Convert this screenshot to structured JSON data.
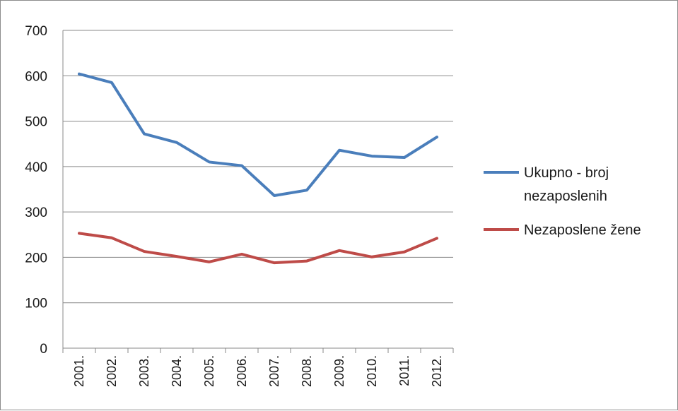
{
  "chart_data": {
    "type": "line",
    "title": "",
    "xlabel": "",
    "ylabel": "",
    "categories": [
      "2001.",
      "2002.",
      "2003.",
      "2004.",
      "2005.",
      "2006.",
      "2007.",
      "2008.",
      "2009.",
      "2010.",
      "2011.",
      "2012."
    ],
    "ylim": [
      0,
      700
    ],
    "yticks": [
      "0",
      "100",
      "200",
      "300",
      "400",
      "500",
      "600",
      "700"
    ],
    "grid": true,
    "legend_position": "right",
    "series": [
      {
        "name_lines": [
          "Ukupno - broj",
          "nezaposlenih"
        ],
        "color": "#4a7ebb",
        "values": [
          604,
          585,
          472,
          453,
          410,
          402,
          336,
          348,
          436,
          423,
          420,
          465
        ]
      },
      {
        "name_lines": [
          "Nezaposlene žene"
        ],
        "color": "#be4b48",
        "values": [
          253,
          243,
          213,
          202,
          190,
          207,
          188,
          192,
          215,
          201,
          212,
          242
        ]
      }
    ]
  }
}
